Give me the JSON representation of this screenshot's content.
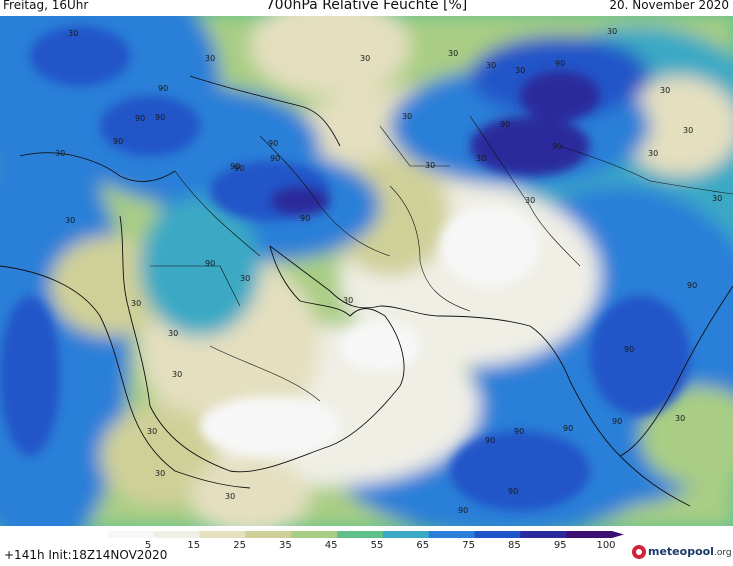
{
  "header": {
    "day": "Freitag, 16Uhr",
    "title": "700hPa Relative Feuchte [%]",
    "date": "20. November 2020"
  },
  "footer": {
    "init": "+141h  Init:18Z14NOV2020",
    "logo_main": "meteopool",
    "logo_tld": ".org"
  },
  "colorbar": {
    "ticks": [
      "5",
      "15",
      "25",
      "35",
      "45",
      "55",
      "65",
      "75",
      "85",
      "95",
      "100"
    ],
    "colors": [
      "#f7f7f7",
      "#f0efe6",
      "#e3dfbf",
      "#cfd098",
      "#a9cd84",
      "#5fc08a",
      "#3aa9c4",
      "#2b7fd8",
      "#2055c8",
      "#2a2a9c",
      "#3c1070"
    ]
  },
  "map_labels": [
    "30",
    "30",
    "30",
    "90",
    "90",
    "90",
    "30",
    "90",
    "90",
    "90",
    "30",
    "90",
    "90",
    "90",
    "30",
    "90",
    "30",
    "30",
    "30",
    "30",
    "30",
    "30",
    "30",
    "30",
    "90",
    "30",
    "30",
    "30",
    "30",
    "30",
    "30",
    "90",
    "30",
    "90",
    "30",
    "30",
    "30",
    "90",
    "30",
    "90",
    "90",
    "90",
    "90",
    "90",
    "90",
    "90",
    "30"
  ]
}
